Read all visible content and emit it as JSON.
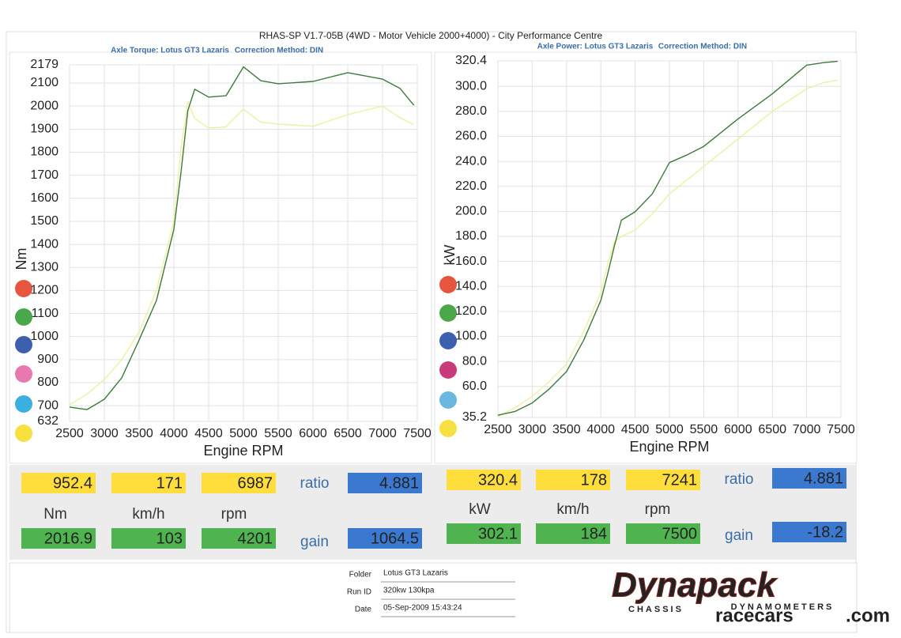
{
  "header": {
    "title": "RHAS-SP V1.7-05B  (4WD - Motor Vehicle 2000+4000) - City Performance Centre"
  },
  "chart_data": [
    {
      "type": "line",
      "subtitle": "Axle Torque: Lotus GT3 Lazaris",
      "annotation": "Correction Method: DIN",
      "xlabel": "Engine RPM",
      "ylabel": "Nm",
      "x": [
        2500,
        2750,
        3000,
        3250,
        3500,
        3750,
        4000,
        4100,
        4200,
        4300,
        4500,
        4750,
        5000,
        5250,
        5500,
        6000,
        6500,
        7000,
        7250,
        7450
      ],
      "series": [
        {
          "color": "#3d7a3d",
          "values": [
            694,
            683,
            728,
            821,
            985,
            1157,
            1466,
            1706,
            1980,
            2073,
            2039,
            2045,
            2170,
            2110,
            2097,
            2107,
            2145,
            2117,
            2077,
            2004
          ]
        },
        {
          "color": "#eef0a0",
          "values": [
            704,
            750,
            814,
            900,
            1020,
            1200,
            1500,
            1809,
            2021,
            1946,
            1905,
            1910,
            1987,
            1930,
            1922,
            1912,
            1963,
            2000,
            1950,
            1919
          ]
        }
      ],
      "xlim": [
        2500,
        7500
      ],
      "xticks": [
        2500,
        3000,
        3500,
        4000,
        4500,
        5000,
        5500,
        6000,
        6500,
        7000,
        7500
      ],
      "ylim": [
        632,
        2179
      ],
      "yticks": [
        632,
        700,
        800,
        900,
        1000,
        1100,
        1200,
        1300,
        1400,
        1500,
        1600,
        1700,
        1800,
        1900,
        2000,
        2100,
        2179
      ],
      "grid": true
    },
    {
      "type": "line",
      "subtitle": "Axle Power: Lotus GT3 Lazaris",
      "annotation": "Correction Method: DIN",
      "xlabel": "Engine RPM",
      "ylabel": "kW",
      "x": [
        2500,
        2750,
        3000,
        3250,
        3500,
        3750,
        4000,
        4100,
        4200,
        4300,
        4500,
        4750,
        5000,
        5250,
        5500,
        6000,
        6500,
        7000,
        7250,
        7450
      ],
      "series": [
        {
          "color": "#3d7a3d",
          "values": [
            37,
            40,
            46.8,
            58,
            71.9,
            97,
            128.8,
            150,
            173,
            193,
            199.7,
            214,
            239,
            245,
            252,
            274,
            294,
            317,
            319,
            320
          ]
        },
        {
          "color": "#eef0a0",
          "values": [
            36,
            43,
            52,
            64,
            78,
            104,
            135,
            158,
            176,
            180,
            185,
            198,
            214,
            225,
            236,
            258,
            280,
            298,
            303,
            305
          ]
        }
      ],
      "xlim": [
        2500,
        7500
      ],
      "xticks": [
        2500,
        3000,
        3500,
        4000,
        4500,
        5000,
        5500,
        6000,
        6500,
        7000,
        7500
      ],
      "ylim": [
        35.2,
        320.4
      ],
      "yticks": [
        35.2,
        {
          "value": 60,
          "label": "60.0"
        },
        {
          "value": 80,
          "label": "80.0"
        },
        {
          "value": 100,
          "label": "100.0"
        },
        {
          "value": 120,
          "label": "120.0"
        },
        {
          "value": 140,
          "label": "140.0"
        },
        {
          "value": 160,
          "label": "160.0"
        },
        {
          "value": 180,
          "label": "180.0"
        },
        {
          "value": 200,
          "label": "200.0"
        },
        {
          "value": 220,
          "label": "220.0"
        },
        {
          "value": 240,
          "label": "240.0"
        },
        {
          "value": 260,
          "label": "260.0"
        },
        {
          "value": 280,
          "label": "280.0"
        },
        {
          "value": 300,
          "label": "300.0"
        },
        320.4
      ],
      "grid": true
    }
  ],
  "panels": [
    {
      "top": [
        "952.4",
        "171",
        "6987"
      ],
      "ratio_label": "ratio",
      "ratio": "4.881",
      "units": [
        "Nm",
        "km/h",
        "rpm"
      ],
      "bottom": [
        "2016.9",
        "103",
        "4201"
      ],
      "gain_label": "gain",
      "gain": "1064.5"
    },
    {
      "top": [
        "320.4",
        "178",
        "7241"
      ],
      "ratio_label": "ratio",
      "ratio": "4.881",
      "units": [
        "kW",
        "km/h",
        "rpm"
      ],
      "bottom": [
        "302.1",
        "184",
        "7500"
      ],
      "gain_label": "gain",
      "gain": "-18.2"
    }
  ],
  "footer": {
    "rows": [
      [
        "Folder",
        "Lotus GT3 Lazaris"
      ],
      [
        "Run ID",
        "320kw 130kpa"
      ],
      [
        "Date",
        "05-Sep-2009  15:43:24"
      ]
    ],
    "logo": "Dynapack",
    "logo_sub": [
      "CHASSIS",
      "DYNAMOMETERS"
    ],
    "watermark": [
      "racecars",
      ".com"
    ]
  }
}
